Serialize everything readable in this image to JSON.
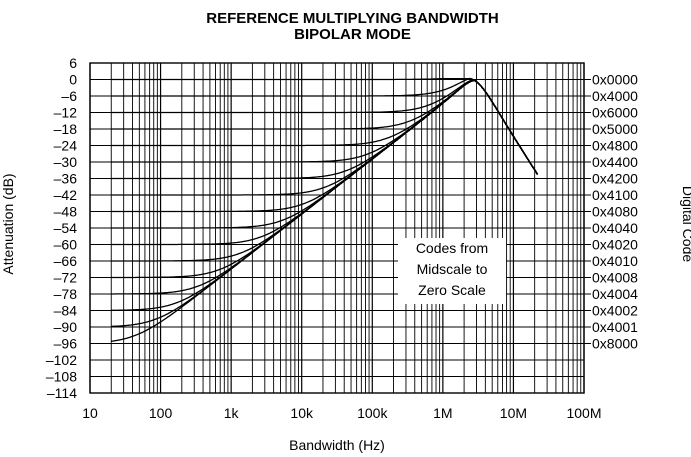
{
  "chart_data": {
    "type": "line",
    "title": "REFERENCE MULTIPLYING BANDWIDTH",
    "subtitle": "BIPOLAR MODE",
    "xlabel": "Bandwidth (Hz)",
    "ylabel": "Attenuation (dB)",
    "right_label": "Digital Code",
    "x_scale": "log",
    "xlim": [
      10,
      100000000
    ],
    "ylim": [
      -114,
      6
    ],
    "grid": true,
    "x_ticks": [
      "10",
      "100",
      "1k",
      "10k",
      "100k",
      "1M",
      "10M",
      "100M"
    ],
    "y_ticks": [
      "6",
      "0",
      "–6",
      "–12",
      "–18",
      "–24",
      "–30",
      "–36",
      "–42",
      "–48",
      "–54",
      "–60",
      "–66",
      "–72",
      "–78",
      "–84",
      "–90",
      "–96",
      "–102",
      "–108",
      "–114"
    ],
    "codes": [
      {
        "label": "0x0000",
        "level": 0
      },
      {
        "label": "0x4000",
        "level": -6
      },
      {
        "label": "0x6000",
        "level": -12
      },
      {
        "label": "0x5000",
        "level": -18
      },
      {
        "label": "0x4800",
        "level": -24
      },
      {
        "label": "0x4400",
        "level": -30
      },
      {
        "label": "0x4200",
        "level": -36
      },
      {
        "label": "0x4100",
        "level": -42
      },
      {
        "label": "0x4080",
        "level": -48
      },
      {
        "label": "0x4040",
        "level": -54
      },
      {
        "label": "0x4020",
        "level": -60
      },
      {
        "label": "0x4010",
        "level": -66
      },
      {
        "label": "0x4008",
        "level": -72
      },
      {
        "label": "0x4004",
        "level": -78
      },
      {
        "label": "0x4002",
        "level": -84
      },
      {
        "label": "0x4001",
        "level": -90
      },
      {
        "label": "0x8000",
        "level": -96
      }
    ],
    "annotation": [
      "Codes from",
      "Midscale to",
      "Zero Scale"
    ]
  }
}
